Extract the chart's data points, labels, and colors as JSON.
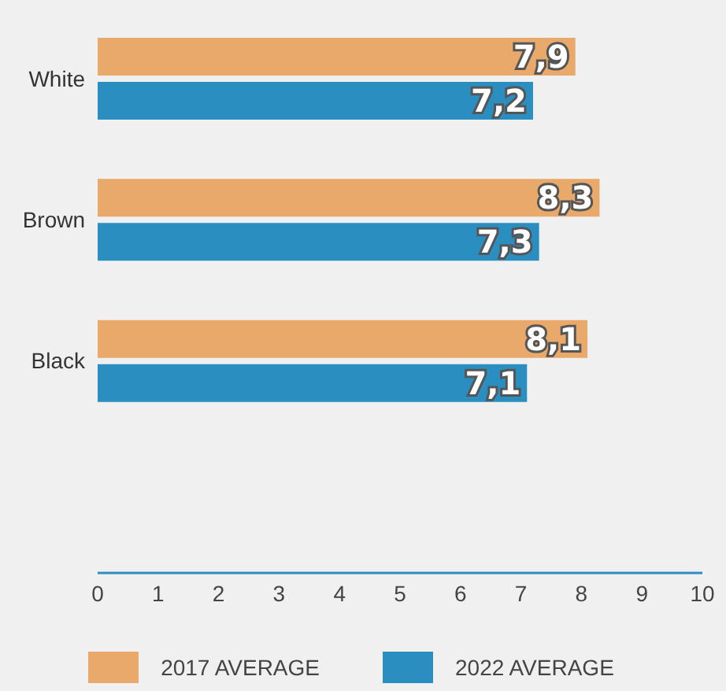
{
  "chart_data": {
    "type": "bar",
    "orientation": "horizontal",
    "categories": [
      "White",
      "Brown",
      "Black"
    ],
    "series": [
      {
        "name": "2017 AVERAGE",
        "color": "#e8a96a",
        "values": [
          7.9,
          8.3,
          8.1
        ],
        "value_labels": [
          "7,9",
          "8,3",
          "8,1"
        ]
      },
      {
        "name": "2022 AVERAGE",
        "color": "#2a8fc0",
        "values": [
          7.2,
          7.3,
          7.1
        ],
        "value_labels": [
          "7,2",
          "7,3",
          "7,1"
        ]
      }
    ],
    "xlim": [
      0,
      10
    ],
    "xticks": [
      0,
      1,
      2,
      3,
      4,
      5,
      6,
      7,
      8,
      9,
      10
    ],
    "grid": false,
    "legend": "bottom"
  }
}
